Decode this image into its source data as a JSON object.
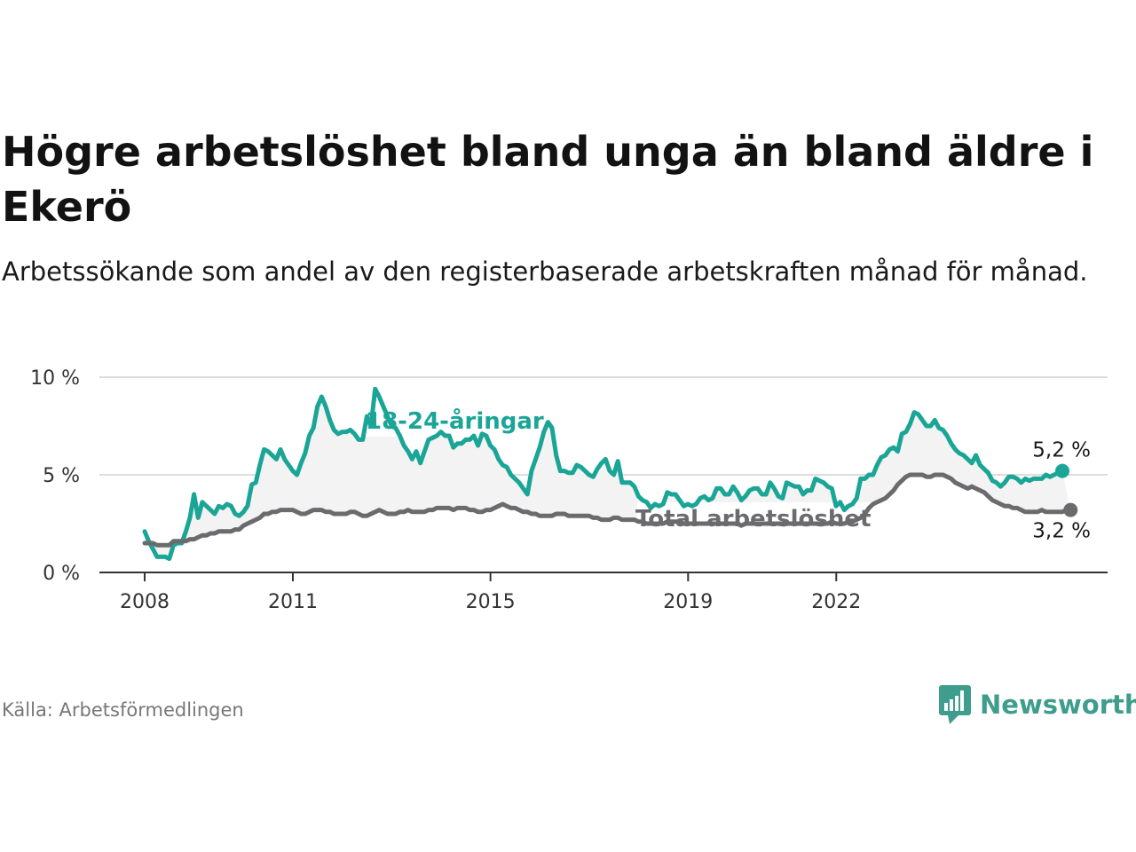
{
  "title": "Högre arbetslöshet bland unga än bland äldre i Ekerö",
  "subtitle": "Arbetssökande som andel av den registerbaserade arbetskraften månad för månad.",
  "source": "Källa: Arbetsförmedlingen",
  "brand": "Newsworthy",
  "colors": {
    "youth": "#1aa596",
    "total": "#6b6a6d",
    "band": "#f3f3f3",
    "grid": "#dddddd",
    "axis": "#333333",
    "brand": "#3e9d8c"
  },
  "chart_data": {
    "type": "line",
    "title": "Högre arbetslöshet bland unga än bland äldre i Ekerö",
    "xlabel": "",
    "ylabel": "",
    "ylim": [
      0,
      10
    ],
    "xlim": [
      2008.0,
      2023.6
    ],
    "yticks": [
      0,
      5,
      10
    ],
    "ytick_labels": [
      "0 %",
      "5 %",
      "10 %"
    ],
    "xticks": [
      2008,
      2011,
      2015,
      2019,
      2022
    ],
    "xtick_labels": [
      "2008",
      "2011",
      "2015",
      "2019",
      "2022"
    ],
    "grid": true,
    "start_year": 2008.0,
    "step_years": 0.0833,
    "series": [
      {
        "name": "18-24-åringar",
        "label": "18-24-åringar",
        "end_label": "5,2 %",
        "values": [
          2.1,
          1.6,
          1.2,
          0.8,
          0.8,
          0.8,
          0.7,
          1.4,
          1.5,
          1.5,
          2.1,
          2.8,
          4.0,
          2.8,
          3.6,
          3.4,
          3.2,
          3.0,
          3.4,
          3.3,
          3.5,
          3.4,
          3.0,
          2.9,
          3.1,
          3.4,
          4.5,
          4.6,
          5.5,
          6.3,
          6.2,
          6.0,
          5.8,
          6.3,
          5.8,
          5.5,
          5.2,
          5.0,
          5.6,
          6.1,
          7.0,
          7.4,
          8.5,
          9.0,
          8.5,
          7.8,
          7.3,
          7.1,
          7.2,
          7.2,
          7.3,
          7.1,
          6.8,
          6.8,
          8.0,
          7.5,
          9.4,
          9.0,
          8.5,
          8.0,
          7.5,
          7.4,
          7.0,
          6.5,
          6.2,
          5.8,
          6.2,
          5.6,
          6.2,
          6.8,
          6.9,
          7.0,
          7.2,
          7.0,
          7.0,
          6.4,
          6.6,
          6.6,
          6.8,
          6.8,
          7.0,
          6.5,
          7.1,
          7.0,
          6.5,
          6.3,
          5.8,
          5.5,
          5.4,
          5.0,
          4.8,
          4.6,
          4.3,
          4.0,
          5.2,
          5.8,
          6.4,
          7.2,
          7.7,
          7.4,
          6.0,
          5.2,
          5.2,
          5.1,
          5.1,
          5.5,
          5.4,
          5.2,
          5.0,
          4.9,
          5.3,
          5.6,
          5.8,
          5.2,
          5.0,
          5.7,
          4.6,
          4.6,
          4.6,
          4.4,
          3.9,
          3.7,
          3.6,
          3.3,
          3.5,
          3.4,
          3.5,
          4.1,
          4.0,
          4.0,
          3.7,
          3.4,
          3.5,
          3.4,
          3.5,
          3.8,
          3.9,
          3.7,
          3.8,
          4.3,
          4.3,
          4.0,
          4.0,
          4.4,
          4.1,
          3.7,
          3.9,
          4.2,
          4.3,
          4.3,
          4.0,
          4.0,
          4.6,
          4.3,
          3.9,
          3.8,
          4.6,
          4.5,
          4.4,
          4.4,
          4.0,
          4.2,
          4.2,
          4.8,
          4.7,
          4.6,
          4.4,
          4.3,
          3.4,
          3.6,
          3.2,
          3.4,
          3.5,
          3.8,
          4.8,
          4.8,
          5.0,
          5.0,
          5.5,
          5.9,
          6.0,
          6.3,
          6.4,
          6.2,
          7.1,
          7.2,
          7.6,
          8.2,
          8.1,
          7.8,
          7.5,
          7.5,
          7.8,
          7.4,
          7.3,
          7.0,
          6.6,
          6.3,
          6.1,
          6.0,
          5.8,
          5.6,
          6.0,
          5.5,
          5.3,
          5.1,
          4.7,
          4.6,
          4.4,
          4.6,
          4.9,
          4.9,
          4.8,
          4.6,
          4.8,
          4.7,
          4.8,
          4.8,
          4.8,
          5.0,
          4.9,
          5.0,
          5.1,
          5.2
        ]
      },
      {
        "name": "Total arbetslöshet",
        "label": "Total arbetslöshet",
        "end_label": "3,2 %",
        "values": [
          1.5,
          1.5,
          1.5,
          1.4,
          1.4,
          1.4,
          1.4,
          1.6,
          1.6,
          1.6,
          1.6,
          1.7,
          1.7,
          1.8,
          1.9,
          1.9,
          2.0,
          2.0,
          2.1,
          2.1,
          2.1,
          2.1,
          2.2,
          2.2,
          2.4,
          2.5,
          2.6,
          2.7,
          2.8,
          3.0,
          3.0,
          3.1,
          3.1,
          3.2,
          3.2,
          3.2,
          3.2,
          3.1,
          3.0,
          3.0,
          3.1,
          3.2,
          3.2,
          3.2,
          3.1,
          3.1,
          3.0,
          3.0,
          3.0,
          3.0,
          3.1,
          3.1,
          3.0,
          2.9,
          2.9,
          3.0,
          3.1,
          3.2,
          3.1,
          3.0,
          3.0,
          3.0,
          3.1,
          3.1,
          3.2,
          3.1,
          3.1,
          3.1,
          3.1,
          3.2,
          3.2,
          3.3,
          3.3,
          3.3,
          3.3,
          3.2,
          3.3,
          3.3,
          3.3,
          3.2,
          3.2,
          3.1,
          3.1,
          3.2,
          3.2,
          3.3,
          3.4,
          3.5,
          3.4,
          3.3,
          3.3,
          3.2,
          3.1,
          3.1,
          3.0,
          3.0,
          2.9,
          2.9,
          2.9,
          2.9,
          3.0,
          3.0,
          3.0,
          2.9,
          2.9,
          2.9,
          2.9,
          2.9,
          2.9,
          2.8,
          2.8,
          2.7,
          2.7,
          2.7,
          2.8,
          2.8,
          2.7,
          2.7,
          2.7,
          2.7,
          2.6,
          2.6,
          2.5,
          2.5,
          2.5,
          2.5,
          2.5,
          2.6,
          2.6,
          2.6,
          2.6,
          2.5,
          2.5,
          2.5,
          2.5,
          2.5,
          2.5,
          2.5,
          2.5,
          2.5,
          2.5,
          2.5,
          2.5,
          2.5,
          2.5,
          2.4,
          2.5,
          2.5,
          2.5,
          2.5,
          2.5,
          2.5,
          2.5,
          2.5,
          2.5,
          2.5,
          2.5,
          2.5,
          2.5,
          2.5,
          2.5,
          2.5,
          2.5,
          2.5,
          2.5,
          2.5,
          2.5,
          2.6,
          2.5,
          2.5,
          2.5,
          2.6,
          2.6,
          2.7,
          2.8,
          3.0,
          3.3,
          3.5,
          3.6,
          3.7,
          3.8,
          4.0,
          4.2,
          4.5,
          4.7,
          4.9,
          5.0,
          5.0,
          5.0,
          5.0,
          4.9,
          4.9,
          5.0,
          5.0,
          5.0,
          4.9,
          4.8,
          4.6,
          4.5,
          4.4,
          4.3,
          4.4,
          4.3,
          4.2,
          4.1,
          3.9,
          3.7,
          3.6,
          3.5,
          3.4,
          3.4,
          3.3,
          3.3,
          3.2,
          3.1,
          3.1,
          3.1,
          3.1,
          3.2,
          3.1,
          3.1,
          3.1,
          3.1,
          3.1,
          3.2,
          3.2
        ]
      }
    ]
  }
}
